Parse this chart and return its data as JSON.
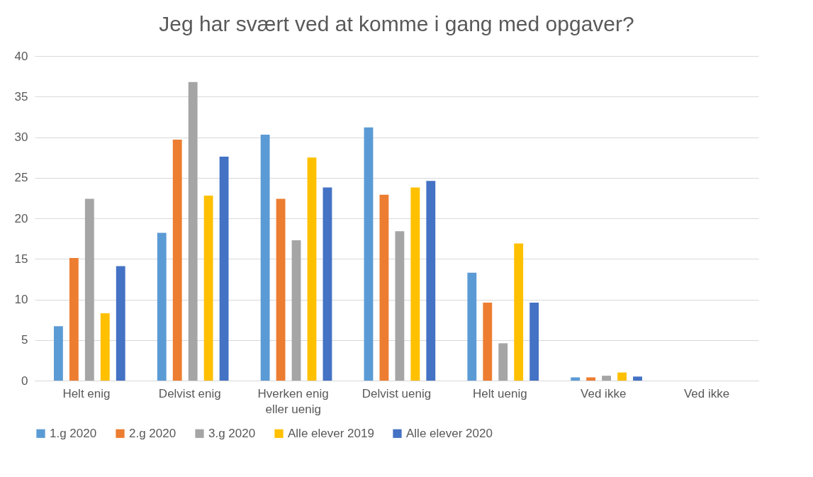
{
  "chart_data": {
    "type": "bar",
    "title": "Jeg har svært ved at komme i gang med opgaver?",
    "categories": [
      "Helt enig",
      "Delvist enig",
      "Hverken enig eller uenig",
      "Delvist uenig",
      "Helt uenig",
      "Ved ikke",
      "Ved ikke"
    ],
    "series": [
      {
        "name": "1.g 2020",
        "color": "#5b9bd5",
        "values": [
          6.7,
          18.2,
          30.3,
          31.2,
          13.3,
          0.4,
          null
        ]
      },
      {
        "name": "2.g 2020",
        "color": "#ed7d31",
        "values": [
          15.1,
          29.7,
          22.4,
          22.9,
          9.6,
          0.4,
          null
        ]
      },
      {
        "name": "3.g 2020",
        "color": "#a5a5a5",
        "values": [
          22.4,
          36.8,
          17.3,
          18.4,
          4.6,
          0.6,
          null
        ]
      },
      {
        "name": "Alle elever 2019",
        "color": "#ffc000",
        "values": [
          8.3,
          22.8,
          27.5,
          23.8,
          16.9,
          1.0,
          null
        ]
      },
      {
        "name": "Alle elever 2020",
        "color": "#4472c4",
        "values": [
          14.1,
          27.6,
          23.8,
          24.6,
          9.6,
          0.5,
          null
        ]
      }
    ],
    "ylim": [
      0,
      40
    ],
    "yticks": [
      0,
      5,
      10,
      15,
      20,
      25,
      30,
      35,
      40
    ],
    "grid": "y",
    "legend": "bottom"
  }
}
